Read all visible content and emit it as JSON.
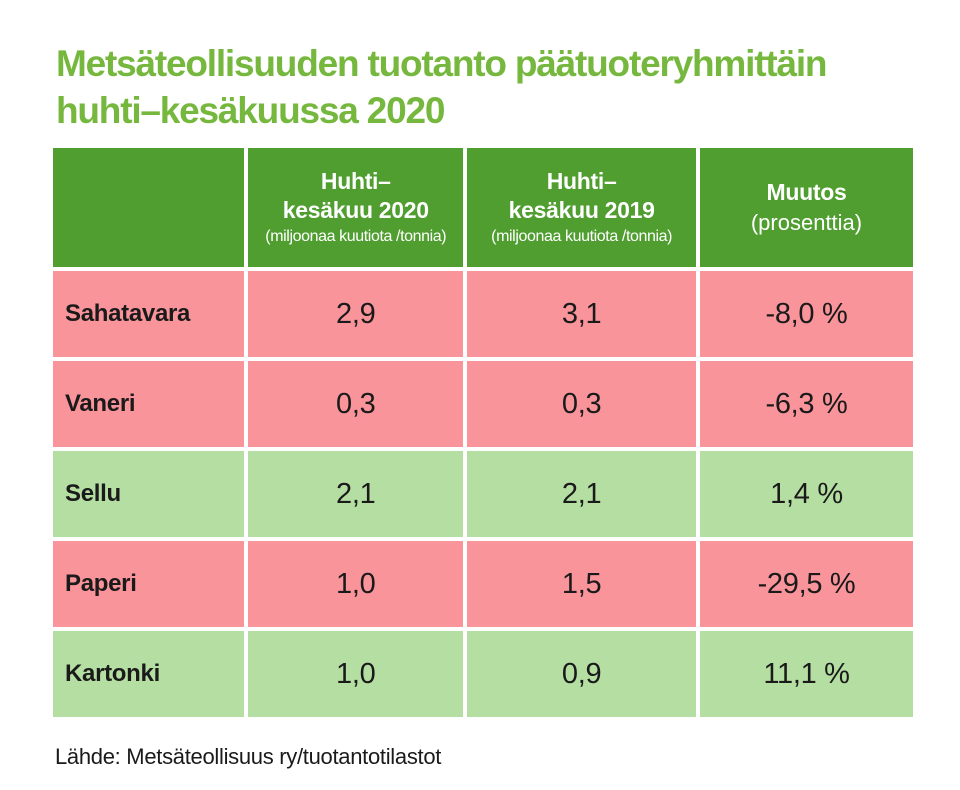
{
  "page": {
    "title_line1": "Metsäteollisuuden tuotanto päätuoteryhmittäin",
    "title_line2": "huhti–kesäkuussa 2020",
    "source": "Lähde: Metsäteollisuus ry/tuotantotilastot"
  },
  "colors": {
    "title_green": "#76b73e",
    "header_green": "#4f9e2f",
    "negative_pink": "#f9949b",
    "positive_green": "#b5dfa2",
    "header_text": "#ffffff",
    "body_text": "#1a1a1a"
  },
  "table": {
    "columns": [
      {
        "line1": "",
        "line2": "",
        "unit": ""
      },
      {
        "line1": "Huhti–",
        "line2": "kesäkuu 2020",
        "unit": "(miljoonaa kuutiota /tonnia)"
      },
      {
        "line1": "Huhti–",
        "line2": "kesäkuu 2019",
        "unit": "(miljoonaa kuutiota /tonnia)"
      },
      {
        "line1": "Muutos",
        "line2": "(prosenttia)",
        "unit": ""
      }
    ],
    "rows": [
      {
        "label": "Sahatavara",
        "y2020": "2,9",
        "y2019": "3,1",
        "change": "-8,0 %",
        "tone": "negative"
      },
      {
        "label": "Vaneri",
        "y2020": "0,3",
        "y2019": "0,3",
        "change": "-6,3 %",
        "tone": "negative"
      },
      {
        "label": "Sellu",
        "y2020": "2,1",
        "y2019": "2,1",
        "change": "1,4 %",
        "tone": "positive"
      },
      {
        "label": "Paperi",
        "y2020": "1,0",
        "y2019": "1,5",
        "change": "-29,5 %",
        "tone": "negative"
      },
      {
        "label": "Kartonki",
        "y2020": "1,0",
        "y2019": "0,9",
        "change": "11,1 %",
        "tone": "positive"
      }
    ]
  },
  "chart_data": {
    "type": "table",
    "title": "Metsäteollisuuden tuotanto päätuoteryhmittäin huhti–kesäkuussa 2020",
    "categories": [
      "Sahatavara",
      "Vaneri",
      "Sellu",
      "Paperi",
      "Kartonki"
    ],
    "series": [
      {
        "name": "Huhti–kesäkuu 2020 (miljoonaa kuutiota /tonnia)",
        "values": [
          2.9,
          0.3,
          2.1,
          1.0,
          1.0
        ]
      },
      {
        "name": "Huhti–kesäkuu 2019 (miljoonaa kuutiota /tonnia)",
        "values": [
          3.1,
          0.3,
          2.1,
          1.5,
          0.9
        ]
      },
      {
        "name": "Muutos (prosenttia)",
        "values": [
          -8.0,
          -6.3,
          1.4,
          -29.5,
          11.1
        ]
      }
    ],
    "legend_position": "none",
    "grid": false,
    "source": "Lähde: Metsäteollisuus ry/tuotantotilastot"
  }
}
